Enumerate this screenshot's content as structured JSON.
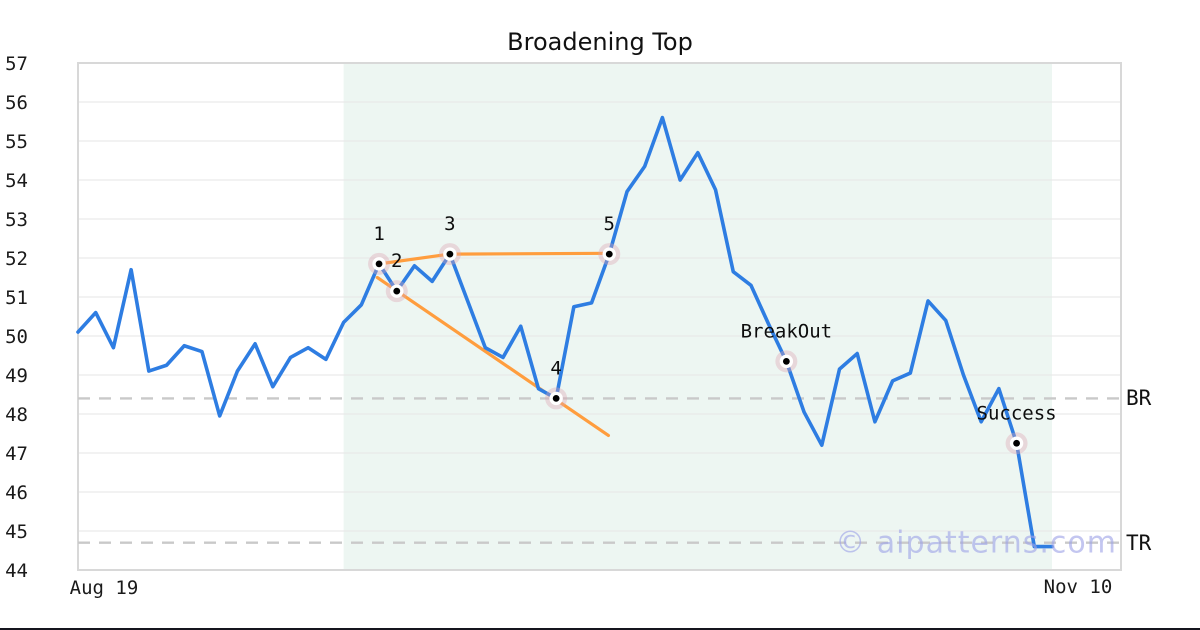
{
  "title": "Broadening Top",
  "watermark_text": "© aipatterns.com",
  "colors": {
    "line": "#2e7de2",
    "trend": "#ff9d3e",
    "shade": "#edf6f2",
    "grid": "#e9e9e9",
    "border": "#d8d8d8",
    "dash": "#c9c9c9",
    "halo": "#dca5b4",
    "dot": "#000000",
    "dot_ring": "#ffffff",
    "watermark": "#9fa4e8",
    "bottom_rule": "#15151e"
  },
  "chart_data": {
    "type": "line",
    "title": "Broadening Top",
    "xlabel": "",
    "ylabel": "",
    "ylim": [
      44,
      57
    ],
    "y_ticks": [
      44,
      45,
      46,
      47,
      48,
      49,
      50,
      51,
      52,
      53,
      54,
      55,
      56,
      57
    ],
    "x_tick_labels": [
      "Aug 19",
      "Nov 10"
    ],
    "grid": true,
    "legend": false,
    "values": [
      50.1,
      50.6,
      49.7,
      51.7,
      49.1,
      49.25,
      49.75,
      49.6,
      47.95,
      49.1,
      49.8,
      48.7,
      49.45,
      49.7,
      49.4,
      50.35,
      50.8,
      51.85,
      51.15,
      51.8,
      51.4,
      52.1,
      50.9,
      49.7,
      49.45,
      50.25,
      48.65,
      48.4,
      50.75,
      50.85,
      52.1,
      53.7,
      54.35,
      55.6,
      54.0,
      54.7,
      53.75,
      51.65,
      51.3,
      50.3,
      49.35,
      48.05,
      47.2,
      49.15,
      49.55,
      47.8,
      48.85,
      49.05,
      50.9,
      50.4,
      49.0,
      47.8,
      48.65,
      47.25,
      44.6,
      44.6
    ],
    "pivots": [
      {
        "label": "1",
        "index": 17,
        "value": 51.85
      },
      {
        "label": "2",
        "index": 18,
        "value": 51.15
      },
      {
        "label": "3",
        "index": 21,
        "value": 52.1
      },
      {
        "label": "4",
        "index": 27,
        "value": 48.4
      },
      {
        "label": "5",
        "index": 30,
        "value": 52.1
      },
      {
        "label": "BreakOut",
        "index": 40,
        "value": 49.35
      },
      {
        "label": "Success",
        "index": 53,
        "value": 47.25
      }
    ],
    "trendlines": [
      {
        "name": "upper",
        "points": [
          {
            "i": 17,
            "v": 51.85
          },
          {
            "i": 21,
            "v": 52.1
          },
          {
            "i": 30,
            "v": 52.12
          }
        ]
      },
      {
        "name": "lower",
        "points": [
          {
            "i": 16.9,
            "v": 51.5
          },
          {
            "i": 29.95,
            "v": 47.45
          }
        ]
      }
    ],
    "hlines": [
      {
        "label": "BR",
        "value": 48.4
      },
      {
        "label": "TR",
        "value": 44.7
      }
    ],
    "shaded_region": {
      "start_index": 15,
      "end_index": 55
    }
  }
}
